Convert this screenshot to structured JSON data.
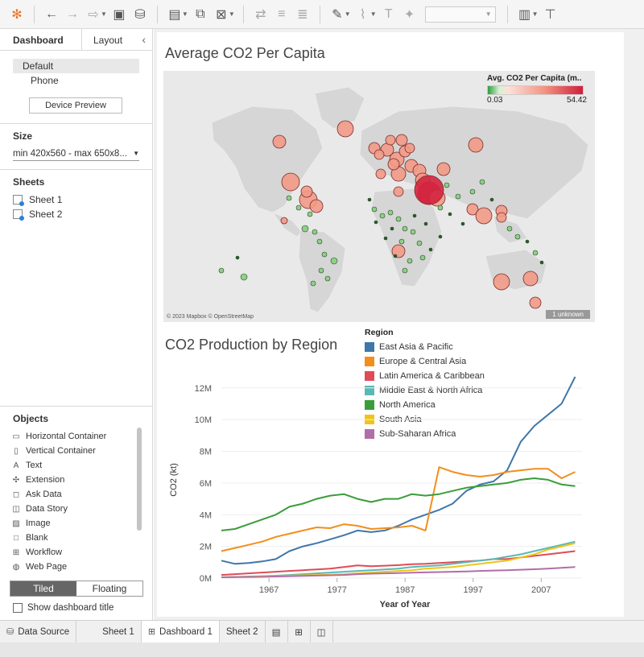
{
  "left_panel": {
    "tabs": [
      {
        "label": "Dashboard"
      },
      {
        "label": "Layout"
      }
    ],
    "device_options": [
      "Default",
      "Phone"
    ],
    "device_preview_label": "Device Preview",
    "size_title": "Size",
    "size_value": "min 420x560 - max 650x8...",
    "sheets_title": "Sheets",
    "sheets": [
      "Sheet 1",
      "Sheet 2"
    ],
    "objects_title": "Objects",
    "objects": [
      "Horizontal Container",
      "Vertical Container",
      "Text",
      "Extension",
      "Ask Data",
      "Data Story",
      "Image",
      "Blank",
      "Workflow",
      "Web Page"
    ],
    "tiled_label": "Tiled",
    "floating_label": "Floating",
    "show_title_label": "Show dashboard title"
  },
  "dashboard": {
    "map_title": "Average CO2 Per Capita",
    "map_legend_title": "Avg. CO2 Per Capita (m..",
    "map_legend_min": "0.03",
    "map_legend_max": "54.42",
    "map_credit": "© 2023 Mapbox © OpenStreetMap",
    "map_unknown": "1 unknown",
    "line_title": "CO2 Production by Region",
    "region_legend_title": "Region"
  },
  "bottom_tabs": {
    "data_source": "Data Source",
    "sheet1": "Sheet 1",
    "dashboard1": "Dashboard 1",
    "sheet2": "Sheet 2"
  },
  "colors": {
    "east_asia": "#3f77aa",
    "europe": "#f28e1c",
    "latin": "#e04b57",
    "mideast": "#5ab9b4",
    "north_america": "#3a9d3a",
    "south_asia": "#f0c419",
    "africa": "#b06fa8"
  },
  "chart_data": {
    "type": "line",
    "xlabel": "Year of Year",
    "ylabel": "CO2 (kt)",
    "x_ticks": [
      1967,
      1977,
      1987,
      1997,
      2007
    ],
    "y_ticks": [
      "0M",
      "2M",
      "4M",
      "6M",
      "8M",
      "10M",
      "12M"
    ],
    "ylim": [
      0,
      12.8
    ],
    "xlim": [
      1960,
      2013
    ],
    "x": [
      1960,
      1962,
      1964,
      1966,
      1968,
      1970,
      1972,
      1974,
      1976,
      1978,
      1980,
      1982,
      1984,
      1986,
      1988,
      1990,
      1992,
      1994,
      1996,
      1998,
      2000,
      2002,
      2004,
      2006,
      2008,
      2010,
      2012
    ],
    "series": [
      {
        "name": "East Asia & Pacific",
        "color": "#3f77aa",
        "values": [
          1.1,
          0.9,
          0.95,
          1.05,
          1.2,
          1.7,
          2.0,
          2.2,
          2.45,
          2.7,
          3.0,
          2.9,
          3.0,
          3.3,
          3.7,
          4.0,
          4.3,
          4.7,
          5.5,
          5.9,
          6.1,
          6.8,
          8.6,
          9.6,
          10.3,
          11.0,
          12.7
        ]
      },
      {
        "name": "Europe & Central Asia",
        "color": "#f28e1c",
        "values": [
          1.7,
          1.9,
          2.1,
          2.3,
          2.6,
          2.8,
          3.0,
          3.2,
          3.15,
          3.4,
          3.3,
          3.1,
          3.15,
          3.2,
          3.3,
          3.0,
          7.0,
          6.7,
          6.5,
          6.4,
          6.5,
          6.7,
          6.8,
          6.9,
          6.9,
          6.3,
          6.7
        ]
      },
      {
        "name": "Latin America & Caribbean",
        "color": "#e04b57",
        "values": [
          0.2,
          0.25,
          0.3,
          0.35,
          0.4,
          0.45,
          0.5,
          0.55,
          0.6,
          0.7,
          0.8,
          0.75,
          0.78,
          0.82,
          0.88,
          0.9,
          0.95,
          1.0,
          1.05,
          1.1,
          1.2,
          1.2,
          1.3,
          1.4,
          1.5,
          1.6,
          1.7
        ]
      },
      {
        "name": "Middle East & North Africa",
        "color": "#5ab9b4",
        "values": [
          0.05,
          0.07,
          0.1,
          0.12,
          0.15,
          0.2,
          0.25,
          0.3,
          0.35,
          0.4,
          0.45,
          0.5,
          0.55,
          0.6,
          0.7,
          0.75,
          0.8,
          0.9,
          1.0,
          1.1,
          1.2,
          1.35,
          1.5,
          1.7,
          1.9,
          2.1,
          2.3
        ]
      },
      {
        "name": "North America",
        "color": "#3a9d3a",
        "values": [
          3.0,
          3.1,
          3.4,
          3.7,
          4.0,
          4.5,
          4.7,
          5.0,
          5.2,
          5.3,
          5.0,
          4.8,
          5.0,
          5.0,
          5.3,
          5.2,
          5.3,
          5.5,
          5.7,
          5.8,
          5.9,
          6.0,
          6.2,
          6.3,
          6.2,
          5.9,
          5.8
        ]
      },
      {
        "name": "South Asia",
        "color": "#f0c419",
        "values": [
          0.05,
          0.07,
          0.08,
          0.1,
          0.12,
          0.15,
          0.18,
          0.2,
          0.22,
          0.25,
          0.3,
          0.35,
          0.4,
          0.45,
          0.5,
          0.6,
          0.65,
          0.7,
          0.8,
          0.9,
          1.0,
          1.1,
          1.3,
          1.5,
          1.8,
          2.0,
          2.2
        ]
      },
      {
        "name": "Sub-Saharan Africa",
        "color": "#b06fa8",
        "values": [
          0.05,
          0.06,
          0.07,
          0.08,
          0.1,
          0.12,
          0.14,
          0.16,
          0.18,
          0.2,
          0.25,
          0.28,
          0.3,
          0.32,
          0.34,
          0.36,
          0.38,
          0.4,
          0.42,
          0.45,
          0.48,
          0.5,
          0.53,
          0.56,
          0.6,
          0.65,
          0.7
        ]
      }
    ]
  }
}
